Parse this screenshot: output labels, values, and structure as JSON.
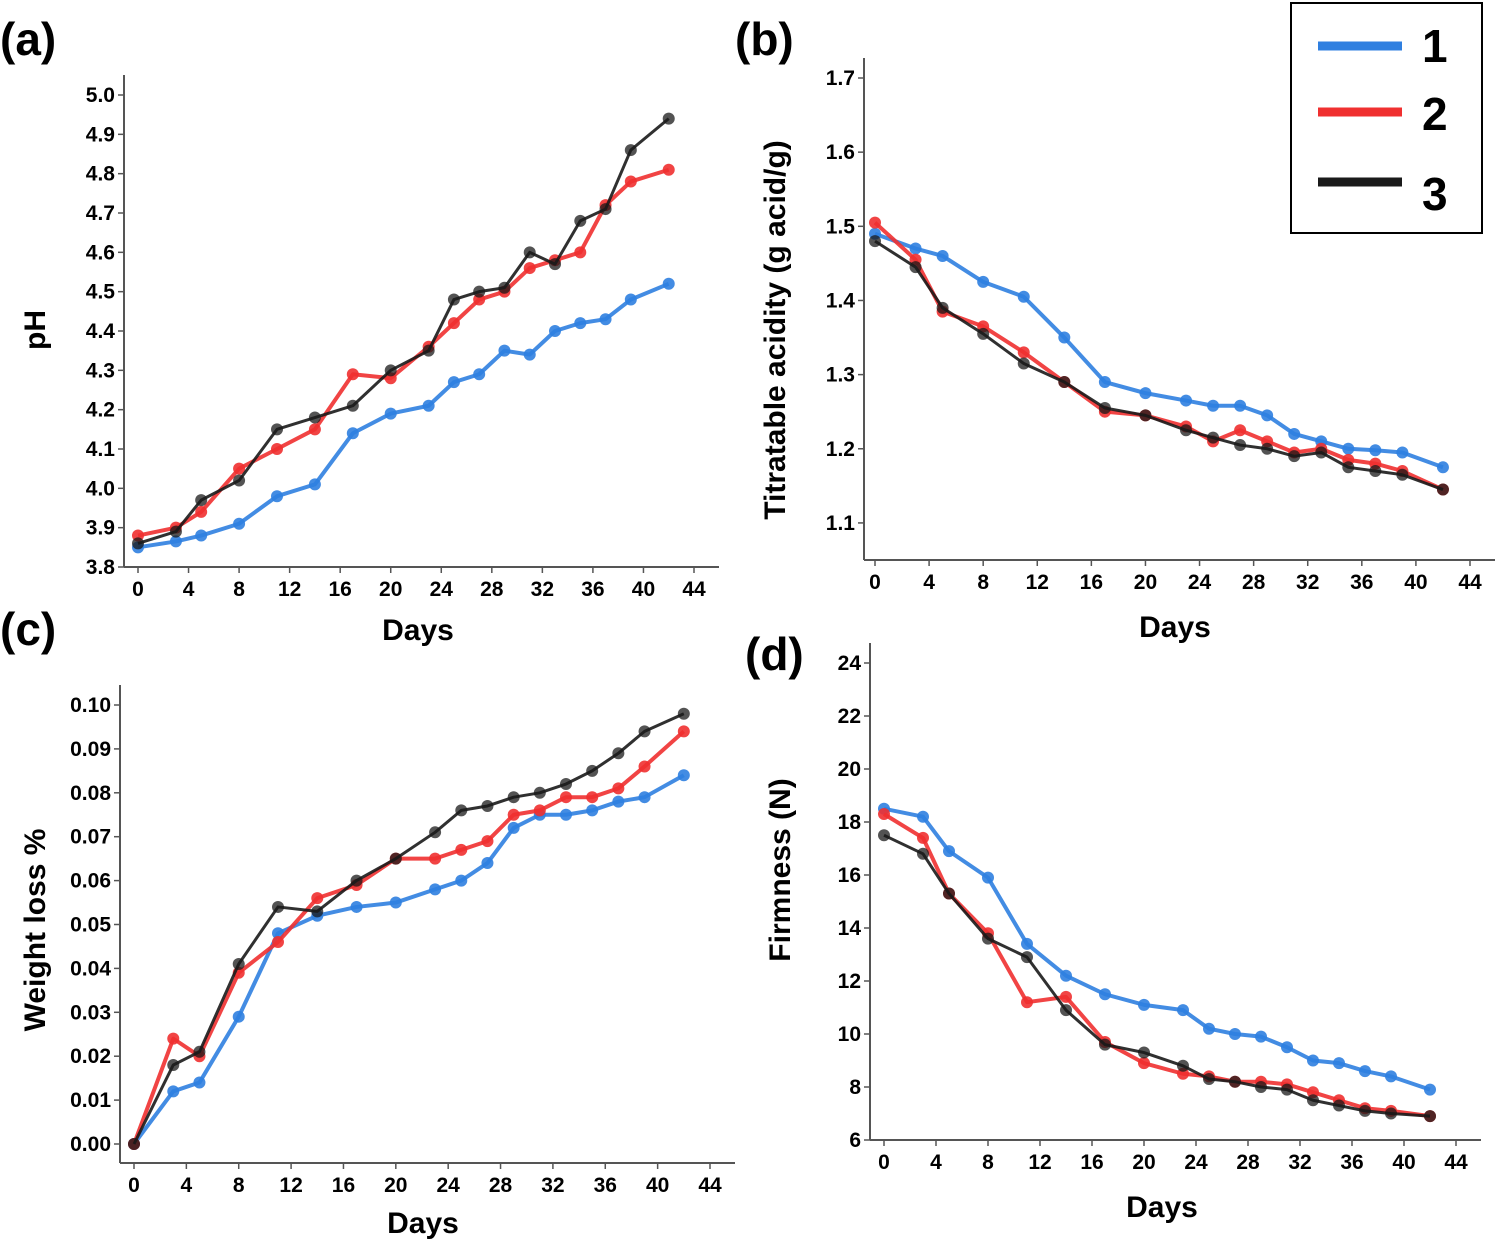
{
  "colors": {
    "series1": "#2f7fe0",
    "series2": "#f03030",
    "series3": "#1a1a1a"
  },
  "legend": {
    "placement": "top-right",
    "items": [
      "1",
      "2",
      "3"
    ]
  },
  "chart_data": [
    {
      "panel": "(a)",
      "type": "line",
      "xlabel": "Days",
      "ylabel": "pH",
      "xlim": [
        0,
        44
      ],
      "ylim": [
        3.8,
        5.0
      ],
      "xticks": [
        "0",
        "4",
        "8",
        "12",
        "16",
        "20",
        "24",
        "28",
        "32",
        "36",
        "40",
        "44"
      ],
      "yticks": [
        "3.8",
        "3.9",
        "4.0",
        "4.1",
        "4.2",
        "4.3",
        "4.4",
        "4.5",
        "4.6",
        "4.7",
        "4.8",
        "4.9",
        "5.0"
      ],
      "x": [
        0,
        3,
        5,
        8,
        11,
        14,
        17,
        20,
        23,
        25,
        27,
        29,
        31,
        33,
        35,
        37,
        39,
        42
      ],
      "series": [
        {
          "name": "1",
          "values": [
            3.85,
            3.865,
            3.88,
            3.91,
            3.98,
            4.01,
            4.14,
            4.19,
            4.21,
            4.27,
            4.29,
            4.35,
            4.34,
            4.4,
            4.42,
            4.43,
            4.48,
            4.52
          ]
        },
        {
          "name": "2",
          "values": [
            3.88,
            3.9,
            3.94,
            4.05,
            4.1,
            4.15,
            4.29,
            4.28,
            4.36,
            4.42,
            4.48,
            4.5,
            4.56,
            4.58,
            4.6,
            4.72,
            4.78,
            4.81
          ]
        },
        {
          "name": "3",
          "values": [
            3.86,
            3.89,
            3.97,
            4.02,
            4.15,
            4.18,
            4.21,
            4.3,
            4.35,
            4.48,
            4.5,
            4.51,
            4.6,
            4.57,
            4.68,
            4.71,
            4.86,
            4.94
          ]
        }
      ]
    },
    {
      "panel": "(b)",
      "type": "line",
      "xlabel": "Days",
      "ylabel": "Titratable acidity (g acid/g)",
      "xlim": [
        0,
        44
      ],
      "ylim": [
        1.05,
        1.7
      ],
      "xticks": [
        "0",
        "4",
        "8",
        "12",
        "16",
        "20",
        "24",
        "28",
        "32",
        "36",
        "40",
        "44"
      ],
      "yticks": [
        "1.1",
        "1.2",
        "1.3",
        "1.4",
        "1.5",
        "1.6",
        "1.7"
      ],
      "x": [
        0,
        3,
        5,
        8,
        11,
        14,
        17,
        20,
        23,
        25,
        27,
        29,
        31,
        33,
        35,
        37,
        39,
        42
      ],
      "series": [
        {
          "name": "1",
          "values": [
            1.49,
            1.47,
            1.46,
            1.425,
            1.405,
            1.35,
            1.29,
            1.275,
            1.265,
            1.258,
            1.258,
            1.245,
            1.22,
            1.21,
            1.2,
            1.198,
            1.195,
            1.175
          ]
        },
        {
          "name": "2",
          "values": [
            1.505,
            1.455,
            1.385,
            1.365,
            1.33,
            1.29,
            1.25,
            1.245,
            1.23,
            1.21,
            1.225,
            1.21,
            1.195,
            1.2,
            1.185,
            1.18,
            1.17,
            1.145
          ]
        },
        {
          "name": "3",
          "values": [
            1.48,
            1.445,
            1.39,
            1.355,
            1.315,
            1.29,
            1.255,
            1.245,
            1.225,
            1.215,
            1.205,
            1.2,
            1.19,
            1.195,
            1.175,
            1.17,
            1.165,
            1.145
          ]
        }
      ]
    },
    {
      "panel": "(c)",
      "type": "line",
      "xlabel": "Days",
      "ylabel": "Weight loss %",
      "xlim": [
        0,
        44
      ],
      "ylim": [
        0,
        0.1
      ],
      "xticks": [
        "0",
        "4",
        "8",
        "12",
        "16",
        "20",
        "24",
        "28",
        "32",
        "36",
        "40",
        "44"
      ],
      "yticks": [
        "0.00",
        "0.01",
        "0.02",
        "0.03",
        "0.04",
        "0.05",
        "0.06",
        "0.07",
        "0.08",
        "0.09",
        "0.10"
      ],
      "x": [
        0,
        3,
        5,
        8,
        11,
        14,
        17,
        20,
        23,
        25,
        27,
        29,
        31,
        33,
        35,
        37,
        39,
        42
      ],
      "series": [
        {
          "name": "1",
          "values": [
            0,
            0.012,
            0.014,
            0.029,
            0.048,
            0.052,
            0.054,
            0.055,
            0.058,
            0.06,
            0.064,
            0.072,
            0.075,
            0.075,
            0.076,
            0.078,
            0.079,
            0.084
          ]
        },
        {
          "name": "2",
          "values": [
            0,
            0.024,
            0.02,
            0.039,
            0.046,
            0.056,
            0.059,
            0.065,
            0.065,
            0.067,
            0.069,
            0.075,
            0.076,
            0.079,
            0.079,
            0.081,
            0.086,
            0.094
          ]
        },
        {
          "name": "3",
          "values": [
            0,
            0.018,
            0.021,
            0.041,
            0.054,
            0.053,
            0.06,
            0.065,
            0.071,
            0.076,
            0.077,
            0.079,
            0.08,
            0.082,
            0.085,
            0.089,
            0.094,
            0.098
          ]
        }
      ]
    },
    {
      "panel": "(d)",
      "type": "line",
      "xlabel": "Days",
      "ylabel": "Firmness (N)",
      "xlim": [
        0,
        44
      ],
      "ylim": [
        6,
        24
      ],
      "xticks": [
        "0",
        "4",
        "8",
        "12",
        "16",
        "20",
        "24",
        "28",
        "32",
        "36",
        "40",
        "44"
      ],
      "yticks": [
        "6",
        "8",
        "10",
        "12",
        "14",
        "16",
        "18",
        "20",
        "22",
        "24"
      ],
      "x": [
        0,
        3,
        5,
        8,
        11,
        14,
        17,
        20,
        23,
        25,
        27,
        29,
        31,
        33,
        35,
        37,
        39,
        42
      ],
      "series": [
        {
          "name": "1",
          "values": [
            18.5,
            18.2,
            16.9,
            15.9,
            13.4,
            12.2,
            11.5,
            11.1,
            10.9,
            10.2,
            10.0,
            9.9,
            9.5,
            9.0,
            8.9,
            8.6,
            8.4,
            7.9
          ]
        },
        {
          "name": "2",
          "values": [
            18.3,
            17.4,
            15.3,
            13.8,
            11.2,
            11.4,
            9.7,
            8.9,
            8.5,
            8.4,
            8.2,
            8.2,
            8.1,
            7.8,
            7.5,
            7.2,
            7.1,
            6.9
          ]
        },
        {
          "name": "3",
          "values": [
            17.5,
            16.8,
            15.3,
            13.6,
            12.9,
            10.9,
            9.6,
            9.3,
            8.8,
            8.3,
            8.2,
            8.0,
            7.9,
            7.5,
            7.3,
            7.1,
            7.0,
            6.9
          ]
        }
      ]
    }
  ]
}
